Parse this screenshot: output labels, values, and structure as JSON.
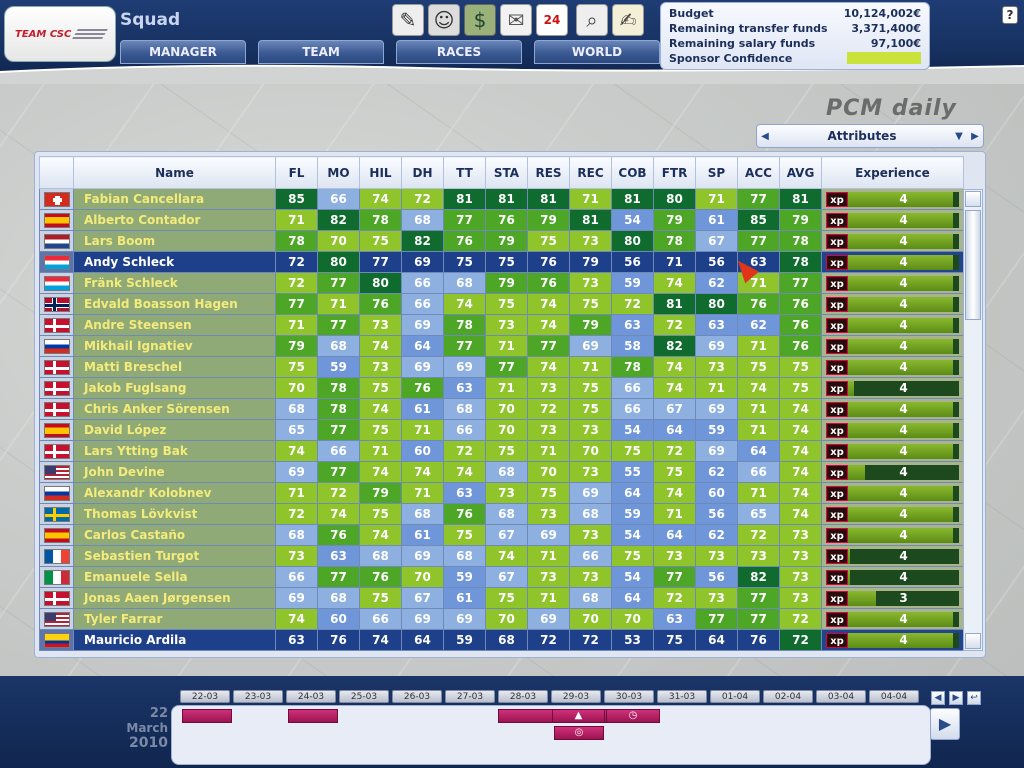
{
  "header": {
    "team_logo": "TEAM CSC",
    "page_title": "Squad",
    "nav": [
      "MANAGER",
      "TEAM",
      "RACES",
      "WORLD"
    ],
    "toolbar_icons": [
      "contract-icon",
      "rider-icon",
      "finance-icon",
      "mail-icon",
      "calendar-icon",
      "search-icon",
      "notes-icon"
    ],
    "calendar_badge": "24",
    "help": "?"
  },
  "budget": {
    "rows": [
      {
        "label": "Budget",
        "value": "10,124,002€"
      },
      {
        "label": "Remaining transfer funds",
        "value": "3,371,400€"
      },
      {
        "label": "Remaining salary funds",
        "value": "97,100€"
      },
      {
        "label": "Sponsor Confidence",
        "value": ""
      }
    ],
    "sponsor_color": "#c9e33a"
  },
  "watermark": "PCM daily",
  "attribute_selector": {
    "label": "Attributes"
  },
  "table": {
    "columns": [
      "",
      "Name",
      "FL",
      "MO",
      "HIL",
      "DH",
      "TT",
      "STA",
      "RES",
      "REC",
      "COB",
      "FTR",
      "SP",
      "ACC",
      "AVG",
      "Experience"
    ],
    "xp_label": "xp",
    "rows": [
      {
        "flag": "switzerland",
        "name": "Fabian Cancellara",
        "v": [
          85,
          66,
          74,
          72,
          81,
          81,
          81,
          71,
          81,
          80,
          71,
          77,
          81
        ],
        "xp": 4,
        "xpfill": 0.95
      },
      {
        "flag": "spain",
        "name": "Alberto Contador",
        "v": [
          71,
          82,
          78,
          68,
          77,
          76,
          79,
          81,
          54,
          79,
          61,
          85,
          79
        ],
        "xp": 4,
        "xpfill": 0.95
      },
      {
        "flag": "netherlands",
        "name": "Lars Boom",
        "v": [
          78,
          70,
          75,
          82,
          76,
          79,
          75,
          73,
          80,
          78,
          67,
          77,
          78
        ],
        "xp": 4,
        "xpfill": 0.95
      },
      {
        "flag": "luxembourg",
        "name": "Andy Schleck",
        "v": [
          72,
          80,
          77,
          69,
          75,
          75,
          76,
          79,
          56,
          71,
          56,
          63,
          78
        ],
        "xp": 4,
        "xpfill": 0.95,
        "selected": true
      },
      {
        "flag": "luxembourg",
        "name": "Fränk Schleck",
        "v": [
          72,
          77,
          80,
          66,
          68,
          79,
          76,
          73,
          59,
          74,
          62,
          71,
          77
        ],
        "xp": 4,
        "xpfill": 0.95
      },
      {
        "flag": "norway",
        "name": "Edvald Boasson Hagen",
        "v": [
          77,
          71,
          76,
          66,
          74,
          75,
          74,
          75,
          72,
          81,
          80,
          76,
          76
        ],
        "xp": 4,
        "xpfill": 0.95
      },
      {
        "flag": "denmark",
        "name": "Andre Steensen",
        "v": [
          71,
          77,
          73,
          69,
          78,
          73,
          74,
          79,
          63,
          72,
          63,
          62,
          76
        ],
        "xp": 4,
        "xpfill": 0.95
      },
      {
        "flag": "russia",
        "name": "Mikhail Ignatiev",
        "v": [
          79,
          68,
          74,
          64,
          77,
          71,
          77,
          69,
          58,
          82,
          69,
          71,
          76
        ],
        "xp": 4,
        "xpfill": 0.95
      },
      {
        "flag": "denmark",
        "name": "Matti Breschel",
        "v": [
          75,
          59,
          73,
          69,
          69,
          77,
          74,
          71,
          78,
          74,
          73,
          75,
          75
        ],
        "xp": 4,
        "xpfill": 0.95
      },
      {
        "flag": "denmark",
        "name": "Jakob Fuglsang",
        "v": [
          70,
          78,
          75,
          76,
          63,
          71,
          73,
          75,
          66,
          74,
          71,
          74,
          75
        ],
        "xp": 4,
        "xpfill": 0.05
      },
      {
        "flag": "denmark",
        "name": "Chris Anker Sörensen",
        "v": [
          68,
          78,
          74,
          61,
          68,
          70,
          72,
          75,
          66,
          67,
          69,
          71,
          74
        ],
        "xp": 4,
        "xpfill": 0.95
      },
      {
        "flag": "spain",
        "name": "David López",
        "v": [
          65,
          77,
          75,
          71,
          66,
          70,
          73,
          73,
          54,
          64,
          59,
          71,
          74
        ],
        "xp": 4,
        "xpfill": 0.95
      },
      {
        "flag": "denmark",
        "name": "Lars Ytting Bak",
        "v": [
          74,
          66,
          71,
          60,
          72,
          75,
          71,
          70,
          75,
          72,
          69,
          64,
          74
        ],
        "xp": 4,
        "xpfill": 0.95
      },
      {
        "flag": "usa",
        "name": "John Devine",
        "v": [
          69,
          77,
          74,
          74,
          74,
          68,
          70,
          73,
          55,
          75,
          62,
          66,
          74
        ],
        "xp": 4,
        "xpfill": 0.15
      },
      {
        "flag": "russia",
        "name": "Alexandr Kolobnev",
        "v": [
          71,
          72,
          79,
          71,
          63,
          73,
          75,
          69,
          64,
          74,
          60,
          71,
          74
        ],
        "xp": 4,
        "xpfill": 0.95
      },
      {
        "flag": "sweden",
        "name": "Thomas Lövkvist",
        "v": [
          72,
          74,
          75,
          68,
          76,
          68,
          73,
          68,
          59,
          71,
          56,
          65,
          74
        ],
        "xp": 4,
        "xpfill": 0.95
      },
      {
        "flag": "spain",
        "name": "Carlos Castaño",
        "v": [
          68,
          76,
          74,
          61,
          75,
          67,
          69,
          73,
          54,
          64,
          62,
          72,
          73
        ],
        "xp": 4,
        "xpfill": 0.95
      },
      {
        "flag": "france",
        "name": "Sebastien Turgot",
        "v": [
          73,
          63,
          68,
          69,
          68,
          74,
          71,
          66,
          75,
          73,
          73,
          73,
          73
        ],
        "xp": 4,
        "xpfill": 0.02
      },
      {
        "flag": "italy",
        "name": "Emanuele Sella",
        "v": [
          66,
          77,
          76,
          70,
          59,
          67,
          73,
          73,
          54,
          77,
          56,
          82,
          73
        ],
        "xp": 4,
        "xpfill": 0.02
      },
      {
        "flag": "denmark",
        "name": "Jonas Aaen Jørgensen",
        "v": [
          69,
          68,
          75,
          67,
          61,
          75,
          71,
          68,
          64,
          72,
          73,
          77,
          73
        ],
        "xp": 3,
        "xpfill": 0.25
      },
      {
        "flag": "usa",
        "name": "Tyler Farrar",
        "v": [
          74,
          60,
          66,
          69,
          69,
          70,
          69,
          70,
          70,
          63,
          77,
          77,
          72
        ],
        "xp": 4,
        "xpfill": 0.95
      },
      {
        "flag": "colombia",
        "name": "Mauricio Ardila",
        "v": [
          63,
          76,
          74,
          64,
          59,
          68,
          72,
          72,
          53,
          75,
          64,
          76,
          72
        ],
        "xp": 4,
        "xpfill": 0.95,
        "selected": true
      }
    ]
  },
  "calendar": {
    "dates": [
      "22-03",
      "23-03",
      "24-03",
      "25-03",
      "26-03",
      "27-03",
      "28-03",
      "29-03",
      "30-03",
      "31-03",
      "01-04",
      "02-04",
      "03-04",
      "04-04"
    ],
    "current_day": "22",
    "current_month": "March",
    "current_year": "2010"
  },
  "colors": {
    "row_bg": "#8fa977",
    "sel_bg": "#1e3f8a"
  }
}
